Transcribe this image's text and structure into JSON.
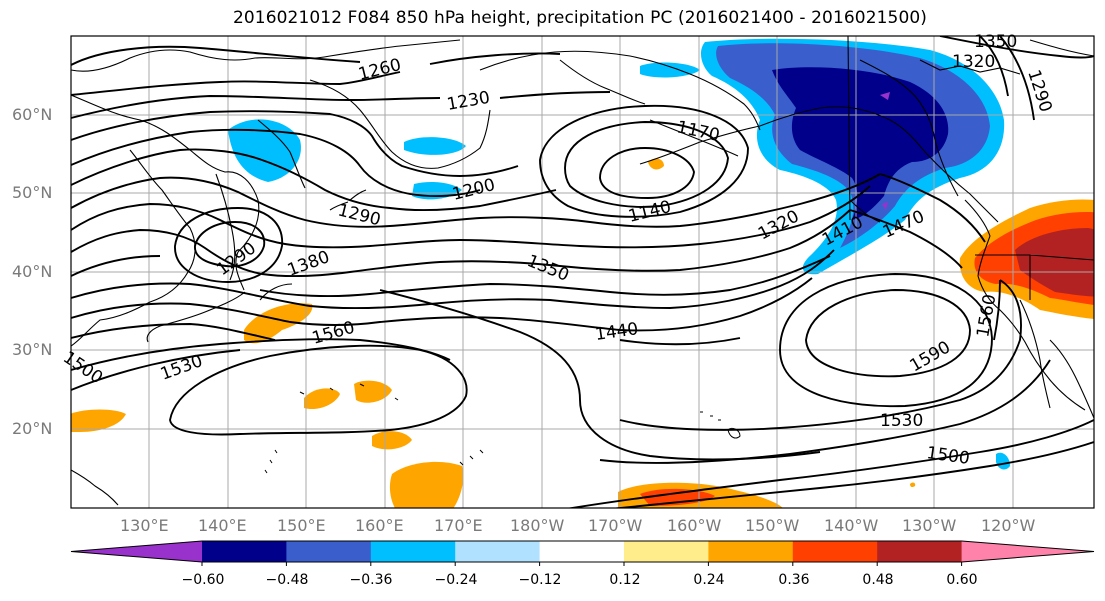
{
  "title": "2016021012 F084 850 hPa height, precipitation PC (2016021400 - 2016021500)",
  "latitude_labels": [
    "60°N",
    "50°N",
    "40°N",
    "30°N",
    "20°N"
  ],
  "longitude_labels": [
    "130°E",
    "140°E",
    "150°E",
    "160°E",
    "170°E",
    "180°W",
    "170°W",
    "160°W",
    "150°W",
    "140°W",
    "130°W",
    "120°W"
  ],
  "contour_labels": [
    "1260",
    "1230",
    "1170",
    "1350",
    "1320",
    "1290",
    "1200",
    "1140",
    "1320",
    "1410",
    "1470",
    "1290",
    "1290",
    "1380",
    "1350",
    "1560",
    "1530",
    "1440",
    "1590",
    "1560",
    "1530",
    "1500",
    "1500"
  ],
  "colorbar": {
    "ticks": [
      "−0.60",
      "−0.48",
      "−0.36",
      "−0.24",
      "−0.12",
      "0.12",
      "0.24",
      "0.36",
      "0.48",
      "0.60"
    ],
    "colors": [
      "#9932cc",
      "#00008b",
      "#3a5fcd",
      "#00bfff",
      "#b0e2ff",
      "#ffffff",
      "#ffec8b",
      "#ffa500",
      "#ff4000",
      "#b22222",
      "#ff82ab"
    ]
  }
}
